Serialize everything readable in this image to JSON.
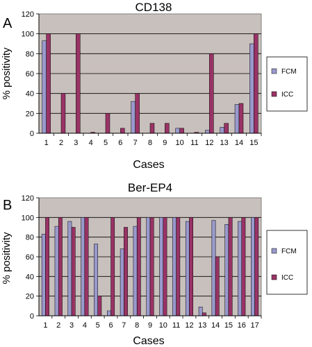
{
  "chart_data": [
    {
      "panel_label": "A",
      "type": "bar",
      "title": "CD138",
      "xlabel": "Cases",
      "ylabel": "% positivity",
      "ylim": [
        0,
        120
      ],
      "yticks": [
        0,
        20,
        40,
        60,
        80,
        100,
        120
      ],
      "grid": true,
      "legend_position": "right",
      "categories": [
        "1",
        "2",
        "3",
        "4",
        "5",
        "6",
        "7",
        "8",
        "9",
        "10",
        "11",
        "12",
        "13",
        "14",
        "15"
      ],
      "series": [
        {
          "name": "FCM",
          "color": "#9999cc",
          "values": [
            93,
            0,
            0,
            0,
            0,
            0,
            32,
            0,
            0,
            5,
            0,
            3,
            6,
            29,
            90
          ]
        },
        {
          "name": "ICC",
          "color": "#993366",
          "values": [
            100,
            40,
            100,
            1,
            20,
            5,
            40,
            10,
            10,
            5,
            1,
            80,
            10,
            30,
            100
          ]
        }
      ]
    },
    {
      "panel_label": "B",
      "type": "bar",
      "title": "Ber-EP4",
      "xlabel": "Cases",
      "ylabel": "% positivity",
      "ylim": [
        0,
        120
      ],
      "yticks": [
        0,
        20,
        40,
        60,
        80,
        100,
        120
      ],
      "grid": true,
      "legend_position": "right",
      "categories": [
        "1",
        "2",
        "3",
        "4",
        "5",
        "6",
        "7",
        "8",
        "9",
        "10",
        "11",
        "12",
        "13",
        "14",
        "15",
        "16",
        "17"
      ],
      "series": [
        {
          "name": "FCM",
          "color": "#9999cc",
          "values": [
            83,
            91,
            96,
            100,
            73,
            5,
            68,
            91,
            100,
            100,
            100,
            96,
            9,
            97,
            93,
            96,
            100
          ]
        },
        {
          "name": "ICC",
          "color": "#993366",
          "values": [
            100,
            100,
            90,
            100,
            20,
            100,
            90,
            100,
            100,
            100,
            100,
            100,
            3,
            60,
            100,
            100,
            100
          ]
        }
      ]
    }
  ],
  "colors": {
    "plot_background": "#c8c0bc",
    "fcm": "#9999cc",
    "icc": "#993366"
  }
}
